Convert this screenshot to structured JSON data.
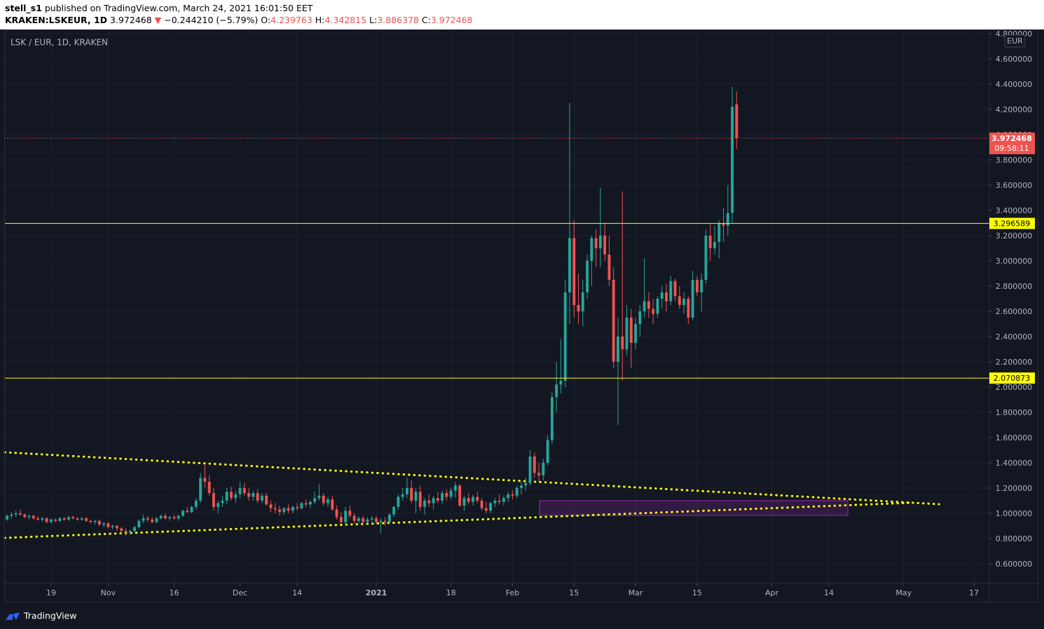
{
  "chart_data": {
    "type": "candlestick",
    "author": "stell_s1",
    "published": "published on TradingView.com, March 24, 2021 16:01:50 EET",
    "symbol": "KRAKEN:LSKEUR, 1D",
    "last": "3.972468",
    "change_arrow": "▼",
    "change": "−0.244210 (−5.79%)",
    "ohlc_labels": [
      {
        "label": "O:",
        "value": "4.239763"
      },
      {
        "label": "H:",
        "value": "4.342815"
      },
      {
        "label": "L:",
        "value": "3.886378"
      },
      {
        "label": "C:",
        "value": "3.972468"
      }
    ],
    "legend": "LSK / EUR, 1D, KRAKEN",
    "currency": "EUR",
    "footer": "TradingView",
    "up_color": "#26a69a",
    "down_color": "#ef5350",
    "grid": true,
    "xlim": [
      -0.5,
      223.5
    ],
    "xticks": [
      {
        "value": 10,
        "label": "19"
      },
      {
        "value": 23,
        "label": "Nov"
      },
      {
        "value": 38,
        "label": "16"
      },
      {
        "value": 53,
        "label": "Dec"
      },
      {
        "value": 66,
        "label": "14"
      },
      {
        "value": 84,
        "label": "2021"
      },
      {
        "value": 101,
        "label": "18"
      },
      {
        "value": 115,
        "label": "Feb"
      },
      {
        "value": 129,
        "label": "15"
      },
      {
        "value": 143,
        "label": "Mar"
      },
      {
        "value": 157,
        "label": "15"
      },
      {
        "value": 174,
        "label": "Apr"
      },
      {
        "value": 187,
        "label": "14"
      },
      {
        "value": 204,
        "label": "May"
      },
      {
        "value": 220,
        "label": "17"
      }
    ],
    "ylim": [
      0.444,
      4.828
    ],
    "yticks": [
      {
        "value": 0.6,
        "label": "0.600000"
      },
      {
        "value": 0.8,
        "label": "0.800000"
      },
      {
        "value": 1.0,
        "label": "1.000000"
      },
      {
        "value": 1.2,
        "label": "1.200000"
      },
      {
        "value": 1.4,
        "label": "1.400000"
      },
      {
        "value": 1.6,
        "label": "1.600000"
      },
      {
        "value": 1.8,
        "label": "1.800000"
      },
      {
        "value": 2.0,
        "label": "2.000000"
      },
      {
        "value": 2.2,
        "label": "2.200000"
      },
      {
        "value": 2.4,
        "label": "2.400000"
      },
      {
        "value": 2.6,
        "label": "2.600000"
      },
      {
        "value": 2.8,
        "label": "2.800000"
      },
      {
        "value": 3.0,
        "label": "3.000000"
      },
      {
        "value": 3.2,
        "label": "3.200000"
      },
      {
        "value": 3.4,
        "label": "3.400000"
      },
      {
        "value": 3.6,
        "label": "3.600000"
      },
      {
        "value": 3.8,
        "label": "3.800000"
      },
      {
        "value": 4.0,
        "label": "4.000000"
      },
      {
        "value": 4.2,
        "label": "4.200000"
      },
      {
        "value": 4.4,
        "label": "4.400000"
      },
      {
        "value": 4.6,
        "label": "4.600000"
      },
      {
        "value": 4.8,
        "label": "4.800000"
      }
    ],
    "last_price": {
      "value": 3.972468,
      "label": "3.972468",
      "countdown": "09:58:11",
      "color": "#ef5350"
    },
    "levels": [
      {
        "value": 3.296589,
        "label": "3.296589",
        "color": "#ffff00"
      },
      {
        "value": 2.070873,
        "label": "2.070873",
        "color": "#ffff00"
      }
    ],
    "x": [
      0,
      1,
      2,
      3,
      4,
      5,
      6,
      7,
      8,
      9,
      10,
      11,
      12,
      13,
      14,
      15,
      16,
      17,
      18,
      19,
      20,
      21,
      22,
      23,
      24,
      25,
      26,
      27,
      28,
      29,
      30,
      31,
      32,
      33,
      34,
      35,
      36,
      37,
      38,
      39,
      40,
      41,
      42,
      43,
      44,
      45,
      46,
      47,
      48,
      49,
      50,
      51,
      52,
      53,
      54,
      55,
      56,
      57,
      58,
      59,
      60,
      61,
      62,
      63,
      64,
      65,
      66,
      67,
      68,
      69,
      70,
      71,
      72,
      73,
      74,
      75,
      76,
      77,
      78,
      79,
      80,
      81,
      82,
      83,
      84,
      85,
      86,
      87,
      88,
      89,
      90,
      91,
      92,
      93,
      94,
      95,
      96,
      97,
      98,
      99,
      100,
      101,
      102,
      103,
      104,
      105,
      106,
      107,
      108,
      109,
      110,
      111,
      112,
      113,
      114,
      115,
      116,
      117,
      118,
      119,
      120,
      121,
      122,
      123,
      124,
      125,
      126,
      127,
      128,
      129,
      130,
      131,
      132,
      133,
      134,
      135,
      136,
      137,
      138,
      139,
      140,
      141,
      142,
      143,
      144,
      145,
      146,
      147,
      148,
      149,
      150,
      151,
      152,
      153,
      154,
      155,
      156,
      157,
      158,
      159,
      160,
      161,
      162,
      163,
      164,
      165,
      166
    ],
    "ohlc": [
      [
        0.95,
        0.99,
        0.94,
        0.98
      ],
      [
        0.98,
        1.01,
        0.96,
        0.99
      ],
      [
        0.99,
        1.02,
        0.97,
        1.0
      ],
      [
        1.0,
        1.03,
        0.98,
        0.99
      ],
      [
        0.99,
        1.0,
        0.96,
        0.97
      ],
      [
        0.97,
        0.99,
        0.95,
        0.98
      ],
      [
        0.98,
        0.99,
        0.95,
        0.96
      ],
      [
        0.96,
        0.98,
        0.94,
        0.95
      ],
      [
        0.95,
        0.97,
        0.93,
        0.96
      ],
      [
        0.96,
        0.97,
        0.92,
        0.93
      ],
      [
        0.93,
        0.96,
        0.92,
        0.95
      ],
      [
        0.95,
        0.96,
        0.93,
        0.94
      ],
      [
        0.94,
        0.97,
        0.93,
        0.96
      ],
      [
        0.96,
        0.97,
        0.94,
        0.95
      ],
      [
        0.95,
        0.98,
        0.94,
        0.97
      ],
      [
        0.97,
        0.98,
        0.95,
        0.96
      ],
      [
        0.96,
        0.97,
        0.94,
        0.95
      ],
      [
        0.95,
        0.97,
        0.94,
        0.96
      ],
      [
        0.96,
        0.97,
        0.93,
        0.94
      ],
      [
        0.94,
        0.95,
        0.92,
        0.93
      ],
      [
        0.93,
        0.95,
        0.91,
        0.94
      ],
      [
        0.94,
        0.95,
        0.9,
        0.91
      ],
      [
        0.91,
        0.93,
        0.89,
        0.92
      ],
      [
        0.92,
        0.93,
        0.88,
        0.89
      ],
      [
        0.89,
        0.91,
        0.87,
        0.9
      ],
      [
        0.9,
        0.91,
        0.86,
        0.88
      ],
      [
        0.88,
        0.89,
        0.84,
        0.86
      ],
      [
        0.86,
        0.88,
        0.82,
        0.85
      ],
      [
        0.85,
        0.87,
        0.83,
        0.86
      ],
      [
        0.86,
        0.9,
        0.85,
        0.89
      ],
      [
        0.89,
        0.95,
        0.88,
        0.94
      ],
      [
        0.94,
        0.99,
        0.92,
        0.96
      ],
      [
        0.96,
        0.98,
        0.93,
        0.95
      ],
      [
        0.95,
        0.97,
        0.92,
        0.93
      ],
      [
        0.93,
        0.97,
        0.92,
        0.96
      ],
      [
        0.96,
        0.99,
        0.95,
        0.98
      ],
      [
        0.98,
        1.0,
        0.95,
        0.96
      ],
      [
        0.96,
        0.98,
        0.94,
        0.97
      ],
      [
        0.97,
        0.99,
        0.95,
        0.96
      ],
      [
        0.96,
        0.99,
        0.94,
        0.98
      ],
      [
        0.98,
        1.03,
        0.97,
        1.02
      ],
      [
        1.02,
        1.05,
        1.0,
        1.01
      ],
      [
        1.01,
        1.06,
        1.0,
        1.05
      ],
      [
        1.05,
        1.12,
        1.03,
        1.1
      ],
      [
        1.1,
        1.32,
        1.08,
        1.28
      ],
      [
        1.28,
        1.39,
        1.2,
        1.25
      ],
      [
        1.25,
        1.3,
        1.14,
        1.16
      ],
      [
        1.16,
        1.2,
        1.02,
        1.05
      ],
      [
        1.05,
        1.1,
        1.0,
        1.08
      ],
      [
        1.08,
        1.14,
        1.05,
        1.1
      ],
      [
        1.1,
        1.2,
        1.07,
        1.17
      ],
      [
        1.17,
        1.21,
        1.1,
        1.12
      ],
      [
        1.12,
        1.18,
        1.08,
        1.15
      ],
      [
        1.15,
        1.25,
        1.12,
        1.2
      ],
      [
        1.2,
        1.24,
        1.14,
        1.16
      ],
      [
        1.16,
        1.2,
        1.1,
        1.13
      ],
      [
        1.13,
        1.18,
        1.1,
        1.16
      ],
      [
        1.16,
        1.19,
        1.08,
        1.1
      ],
      [
        1.1,
        1.16,
        1.08,
        1.14
      ],
      [
        1.14,
        1.16,
        1.06,
        1.07
      ],
      [
        1.07,
        1.1,
        1.01,
        1.04
      ],
      [
        1.04,
        1.08,
        1.0,
        1.03
      ],
      [
        1.03,
        1.06,
        0.98,
        1.01
      ],
      [
        1.01,
        1.05,
        0.99,
        1.04
      ],
      [
        1.04,
        1.07,
        1.0,
        1.02
      ],
      [
        1.02,
        1.06,
        1.0,
        1.05
      ],
      [
        1.05,
        1.08,
        1.02,
        1.04
      ],
      [
        1.04,
        1.09,
        1.03,
        1.08
      ],
      [
        1.08,
        1.11,
        1.05,
        1.07
      ],
      [
        1.07,
        1.1,
        1.04,
        1.09
      ],
      [
        1.09,
        1.17,
        1.07,
        1.12
      ],
      [
        1.12,
        1.23,
        1.1,
        1.14
      ],
      [
        1.14,
        1.16,
        1.06,
        1.08
      ],
      [
        1.08,
        1.13,
        1.05,
        1.11
      ],
      [
        1.11,
        1.14,
        1.02,
        1.03
      ],
      [
        1.03,
        1.06,
        0.95,
        0.97
      ],
      [
        0.97,
        1.01,
        0.92,
        0.93
      ],
      [
        0.93,
        1.05,
        0.91,
        1.02
      ],
      [
        1.02,
        1.06,
        0.96,
        0.98
      ],
      [
        0.98,
        1.0,
        0.92,
        0.94
      ],
      [
        0.94,
        0.98,
        0.92,
        0.96
      ],
      [
        0.96,
        0.98,
        0.91,
        0.93
      ],
      [
        0.93,
        0.97,
        0.92,
        0.95
      ],
      [
        0.95,
        0.98,
        0.93,
        0.96
      ],
      [
        0.96,
        0.98,
        0.92,
        0.93
      ],
      [
        0.93,
        0.96,
        0.84,
        0.94
      ],
      [
        0.94,
        0.97,
        0.9,
        0.93
      ],
      [
        0.93,
        1.0,
        0.92,
        0.99
      ],
      [
        0.99,
        1.06,
        0.97,
        1.05
      ],
      [
        1.05,
        1.15,
        1.03,
        1.13
      ],
      [
        1.13,
        1.2,
        1.1,
        1.15
      ],
      [
        1.15,
        1.28,
        1.12,
        1.2
      ],
      [
        1.2,
        1.26,
        1.08,
        1.1
      ],
      [
        1.1,
        1.2,
        1.0,
        1.17
      ],
      [
        1.17,
        1.22,
        1.02,
        1.05
      ],
      [
        1.05,
        1.12,
        0.99,
        1.1
      ],
      [
        1.1,
        1.15,
        1.05,
        1.08
      ],
      [
        1.08,
        1.14,
        1.03,
        1.12
      ],
      [
        1.12,
        1.17,
        1.08,
        1.1
      ],
      [
        1.1,
        1.18,
        1.07,
        1.16
      ],
      [
        1.16,
        1.19,
        1.1,
        1.13
      ],
      [
        1.13,
        1.2,
        1.11,
        1.18
      ],
      [
        1.18,
        1.25,
        1.12,
        1.22
      ],
      [
        1.22,
        1.23,
        1.05,
        1.06
      ],
      [
        1.06,
        1.14,
        1.02,
        1.12
      ],
      [
        1.12,
        1.16,
        1.07,
        1.09
      ],
      [
        1.09,
        1.15,
        1.06,
        1.13
      ],
      [
        1.13,
        1.17,
        1.08,
        1.1
      ],
      [
        1.1,
        1.12,
        1.02,
        1.04
      ],
      [
        1.04,
        1.09,
        1.0,
        1.02
      ],
      [
        1.02,
        1.09,
        1.0,
        1.08
      ],
      [
        1.08,
        1.12,
        1.05,
        1.1
      ],
      [
        1.1,
        1.15,
        1.07,
        1.09
      ],
      [
        1.09,
        1.14,
        1.06,
        1.12
      ],
      [
        1.12,
        1.17,
        1.09,
        1.15
      ],
      [
        1.15,
        1.18,
        1.11,
        1.14
      ],
      [
        1.14,
        1.22,
        1.12,
        1.2
      ],
      [
        1.2,
        1.25,
        1.15,
        1.22
      ],
      [
        1.22,
        1.28,
        1.18,
        1.24
      ],
      [
        1.24,
        1.5,
        1.22,
        1.45
      ],
      [
        1.45,
        1.48,
        1.28,
        1.32
      ],
      [
        1.32,
        1.4,
        1.25,
        1.3
      ],
      [
        1.3,
        1.43,
        1.26,
        1.4
      ],
      [
        1.4,
        1.62,
        1.38,
        1.58
      ],
      [
        1.58,
        1.96,
        1.55,
        1.92
      ],
      [
        1.92,
        2.2,
        1.8,
        2.02
      ],
      [
        2.02,
        2.38,
        1.95,
        2.05
      ],
      [
        2.05,
        2.85,
        2.0,
        2.75
      ],
      [
        2.75,
        4.25,
        2.5,
        3.18
      ],
      [
        3.18,
        3.32,
        2.55,
        2.65
      ],
      [
        2.65,
        2.9,
        2.5,
        2.6
      ],
      [
        2.6,
        2.85,
        2.48,
        2.75
      ],
      [
        2.75,
        3.05,
        2.7,
        3.0
      ],
      [
        3.0,
        3.2,
        2.8,
        3.18
      ],
      [
        3.18,
        3.25,
        2.95,
        3.1
      ],
      [
        3.1,
        3.58,
        2.95,
        3.2
      ],
      [
        3.2,
        3.3,
        3.0,
        3.05
      ],
      [
        3.05,
        3.2,
        2.8,
        2.85
      ],
      [
        2.85,
        2.95,
        2.15,
        2.2
      ],
      [
        2.2,
        2.55,
        1.7,
        2.4
      ],
      [
        2.4,
        3.55,
        2.05,
        2.3
      ],
      [
        2.3,
        2.65,
        2.25,
        2.55
      ],
      [
        2.55,
        2.62,
        2.15,
        2.35
      ],
      [
        2.35,
        2.55,
        2.3,
        2.5
      ],
      [
        2.5,
        2.65,
        2.4,
        2.6
      ],
      [
        2.6,
        3.02,
        2.55,
        2.68
      ],
      [
        2.68,
        2.75,
        2.55,
        2.62
      ],
      [
        2.62,
        2.7,
        2.5,
        2.58
      ],
      [
        2.58,
        2.72,
        2.55,
        2.7
      ],
      [
        2.7,
        2.8,
        2.62,
        2.75
      ],
      [
        2.75,
        2.82,
        2.6,
        2.68
      ],
      [
        2.68,
        2.88,
        2.65,
        2.84
      ],
      [
        2.84,
        2.86,
        2.68,
        2.72
      ],
      [
        2.72,
        2.8,
        2.62,
        2.65
      ],
      [
        2.65,
        2.75,
        2.58,
        2.7
      ],
      [
        2.7,
        2.72,
        2.5,
        2.55
      ],
      [
        2.55,
        2.92,
        2.53,
        2.85
      ],
      [
        2.85,
        2.88,
        2.72,
        2.75
      ],
      [
        2.75,
        2.9,
        2.6,
        2.85
      ],
      [
        2.85,
        3.25,
        2.82,
        3.2
      ],
      [
        3.2,
        3.3,
        3.0,
        3.1
      ],
      [
        3.1,
        3.28,
        3.05,
        3.15
      ],
      [
        3.15,
        3.32,
        3.02,
        3.3
      ],
      [
        3.3,
        3.42,
        3.15,
        3.28
      ],
      [
        3.28,
        3.6,
        3.2,
        3.38
      ],
      [
        3.38,
        4.38,
        3.3,
        4.22
      ],
      [
        4.239763,
        4.342815,
        3.886378,
        3.972468
      ]
    ]
  }
}
